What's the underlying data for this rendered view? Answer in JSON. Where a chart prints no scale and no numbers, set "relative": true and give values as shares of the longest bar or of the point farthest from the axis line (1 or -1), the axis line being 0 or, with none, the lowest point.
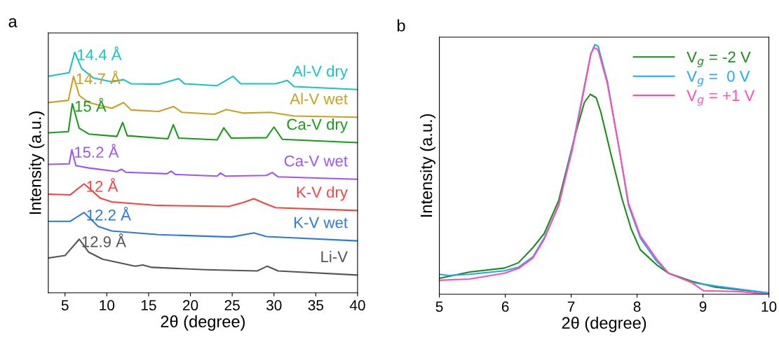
{
  "chart_data": [
    {
      "type": "line",
      "title": "a",
      "xlabel": "2θ (degree)",
      "ylabel": "Intensity (a.u.)",
      "relative": true,
      "xlim": [
        3,
        40
      ],
      "xticks": [
        5,
        10,
        15,
        20,
        25,
        30,
        35,
        40
      ],
      "tick_labels": "x",
      "grid": false,
      "legend": false,
      "marker": "none",
      "line_style": "solid",
      "series": [
        {
          "name": "Al-V dry",
          "color": "#17c4c4",
          "x": [
            3,
            5.5,
            6.16,
            7.0,
            8.4,
            10.6,
            12.0,
            12.9,
            16.2,
            18.6,
            19.3,
            23.2,
            25.1,
            26.0,
            30.2,
            31.6,
            32.4,
            40
          ],
          "values": [
            0.9,
            0.915,
            1.0,
            0.932,
            0.893,
            0.877,
            0.886,
            0.869,
            0.867,
            0.89,
            0.869,
            0.861,
            0.9,
            0.869,
            0.869,
            0.883,
            0.857,
            0.845
          ]
        },
        {
          "name": "Al-V wet",
          "color": "#c9a020",
          "x": [
            3,
            5.4,
            6.02,
            6.7,
            7.84,
            10.6,
            12.0,
            12.9,
            16.2,
            18.0,
            19.0,
            22.9,
            24.3,
            26.3,
            29.6,
            32.4,
            40
          ],
          "values": [
            0.791,
            0.8,
            0.9,
            0.82,
            0.791,
            0.767,
            0.791,
            0.76,
            0.754,
            0.774,
            0.75,
            0.742,
            0.762,
            0.747,
            0.75,
            0.735,
            0.73
          ]
        },
        {
          "name": "Ca-V dry",
          "color": "#169c16",
          "x": [
            3,
            5.4,
            5.88,
            6.7,
            7.84,
            11.2,
            11.9,
            12.45,
            17.3,
            17.96,
            18.6,
            23.2,
            24.0,
            24.9,
            29.1,
            30.0,
            31.0,
            40
          ],
          "values": [
            0.665,
            0.67,
            0.786,
            0.684,
            0.66,
            0.65,
            0.708,
            0.653,
            0.64,
            0.699,
            0.643,
            0.636,
            0.686,
            0.643,
            0.645,
            0.689,
            0.638,
            0.624
          ]
        },
        {
          "name": "Ca-V wet",
          "color": "#a155f0",
          "x": [
            3,
            5.5,
            5.82,
            6.3,
            7.84,
            11.2,
            11.75,
            12.3,
            17.2,
            17.7,
            18.2,
            23.2,
            23.6,
            24.2,
            29.1,
            29.8,
            30.5,
            40
          ],
          "values": [
            0.534,
            0.536,
            0.595,
            0.529,
            0.519,
            0.504,
            0.514,
            0.501,
            0.495,
            0.506,
            0.492,
            0.485,
            0.498,
            0.485,
            0.488,
            0.5,
            0.482,
            0.472
          ]
        },
        {
          "name": "K-V dry",
          "color": "#f04545",
          "x": [
            3,
            5.6,
            7.28,
            9.24,
            10.6,
            16.2,
            24.6,
            26.3,
            27.6,
            28.8,
            30.2,
            40
          ],
          "values": [
            0.41,
            0.407,
            0.453,
            0.393,
            0.378,
            0.363,
            0.359,
            0.375,
            0.391,
            0.373,
            0.354,
            0.342
          ]
        },
        {
          "name": "K-V wet",
          "color": "#2d7ad8",
          "x": [
            3,
            5.6,
            7.28,
            8.96,
            10.6,
            16.2,
            24.9,
            27.6,
            29.1,
            40
          ],
          "values": [
            0.297,
            0.297,
            0.334,
            0.276,
            0.257,
            0.242,
            0.232,
            0.249,
            0.234,
            0.216
          ]
        },
        {
          "name": "Li-V",
          "color": "#555555",
          "x": [
            3,
            5.0,
            6.7,
            7.84,
            9.5,
            13.4,
            14.3,
            15.4,
            21.8,
            28.0,
            29.2,
            30.5,
            40
          ],
          "values": [
            0.145,
            0.155,
            0.223,
            0.169,
            0.14,
            0.111,
            0.116,
            0.106,
            0.096,
            0.091,
            0.111,
            0.091,
            0.074
          ]
        }
      ],
      "annotations": [
        {
          "text": "14.4 Å",
          "x": 6.16,
          "y": 1.0
        },
        {
          "text": "14.7 Å",
          "x": 6.02,
          "y": 0.9
        },
        {
          "text": "15 Å",
          "x": 5.88,
          "y": 0.786
        },
        {
          "text": "15.2 Å",
          "x": 5.82,
          "y": 0.595
        },
        {
          "text": "12 Å",
          "x": 7.28,
          "y": 0.453
        },
        {
          "text": "12.2 Å",
          "x": 7.28,
          "y": 0.334
        },
        {
          "text": "12.9 Å",
          "x": 6.7,
          "y": 0.223
        }
      ]
    },
    {
      "type": "line",
      "title": "b",
      "xlabel": "2θ (degree)",
      "ylabel": "Intensity (a.u.)",
      "relative": true,
      "xlim": [
        5,
        10
      ],
      "xticks": [
        5,
        6,
        7,
        8,
        9,
        10
      ],
      "tick_labels": "x",
      "grid": false,
      "legend": "top right",
      "marker": "none",
      "line_style": "solid",
      "series": [
        {
          "name": "V$_{g}$ = -2 V",
          "color": "#1a8c1a",
          "x": [
            5,
            5.46,
            5.99,
            6.2,
            6.42,
            6.59,
            6.81,
            7.06,
            7.2,
            7.29,
            7.38,
            7.45,
            7.62,
            7.77,
            7.91,
            8.05,
            8.3,
            8.48,
            8.83,
            9.19,
            10
          ],
          "values": [
            0.064,
            0.089,
            0.105,
            0.126,
            0.187,
            0.243,
            0.375,
            0.637,
            0.768,
            0.801,
            0.787,
            0.73,
            0.543,
            0.384,
            0.262,
            0.178,
            0.117,
            0.084,
            0.052,
            0.028,
            0.005
          ]
        },
        {
          "name": "V$_{g}$ =  0 V",
          "color": "#1ea5ff",
          "x": [
            5,
            5.14,
            5.46,
            5.99,
            6.2,
            6.42,
            6.59,
            6.81,
            7.02,
            7.2,
            7.3,
            7.36,
            7.41,
            7.55,
            7.73,
            7.87,
            8.05,
            8.3,
            8.48,
            8.83,
            9.19,
            10
          ],
          "values": [
            0.08,
            0.075,
            0.08,
            0.094,
            0.108,
            0.15,
            0.225,
            0.356,
            0.59,
            0.833,
            0.964,
            1.0,
            0.993,
            0.852,
            0.581,
            0.356,
            0.225,
            0.131,
            0.084,
            0.047,
            0.033,
            0.005
          ]
        },
        {
          "name": "V$_{g}$ = +1 V",
          "color": "#ff4fb0",
          "x": [
            5,
            5.46,
            5.99,
            6.2,
            6.42,
            6.59,
            6.81,
            7.02,
            7.2,
            7.3,
            7.35,
            7.41,
            7.55,
            7.73,
            7.87,
            8.05,
            8.3,
            8.48,
            8.83,
            9.01,
            9.54,
            10
          ],
          "values": [
            0.056,
            0.061,
            0.084,
            0.103,
            0.145,
            0.22,
            0.356,
            0.581,
            0.824,
            0.964,
            0.988,
            0.978,
            0.843,
            0.581,
            0.365,
            0.234,
            0.14,
            0.084,
            0.047,
            0.014,
            0.011,
            0.0
          ]
        }
      ]
    }
  ]
}
